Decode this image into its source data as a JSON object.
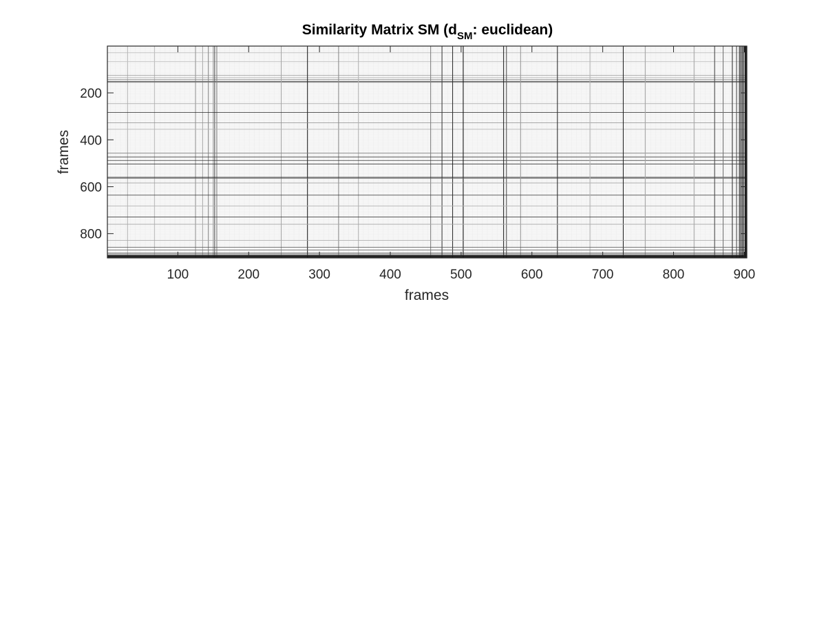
{
  "chart_data": {
    "type": "heatmap",
    "title": "Similarity Matrix SM   (d",
    "title_sub": "SM",
    "title_tail": ": euclidean)",
    "xlabel": "frames",
    "ylabel": "frames",
    "xlim": [
      0.5,
      903.5
    ],
    "ylim": [
      0.5,
      903.5
    ],
    "y_direction": "reverse",
    "xticks": [
      100,
      200,
      300,
      400,
      500,
      600,
      700,
      800,
      900
    ],
    "xtick_labels": [
      "100",
      "200",
      "300",
      "400",
      "500",
      "600",
      "700",
      "800",
      "900"
    ],
    "yticks": [
      200,
      400,
      600,
      800
    ],
    "ytick_labels": [
      "200",
      "400",
      "600",
      "800"
    ],
    "colormap": "gray",
    "background_value": 0.97,
    "dark_frames": [
      {
        "frame": 29,
        "value": 0.72
      },
      {
        "frame": 67,
        "value": 0.75
      },
      {
        "frame": 125,
        "value": 0.6
      },
      {
        "frame": 135,
        "value": 0.68
      },
      {
        "frame": 143,
        "value": 0.55
      },
      {
        "frame": 150,
        "value": 0.6
      },
      {
        "frame": 152,
        "value": 0.35
      },
      {
        "frame": 155,
        "value": 0.5
      },
      {
        "frame": 246,
        "value": 0.65
      },
      {
        "frame": 283,
        "value": 0.15
      },
      {
        "frame": 327,
        "value": 0.55
      },
      {
        "frame": 355,
        "value": 0.7
      },
      {
        "frame": 457,
        "value": 0.5
      },
      {
        "frame": 473,
        "value": 0.25
      },
      {
        "frame": 488,
        "value": 0.2
      },
      {
        "frame": 503,
        "value": 0.1
      },
      {
        "frame": 560,
        "value": 0.15
      },
      {
        "frame": 564,
        "value": 0.35
      },
      {
        "frame": 584,
        "value": 0.6
      },
      {
        "frame": 636,
        "value": 0.2
      },
      {
        "frame": 682,
        "value": 0.7
      },
      {
        "frame": 729,
        "value": 0.15
      },
      {
        "frame": 760,
        "value": 0.65
      },
      {
        "frame": 829,
        "value": 0.65
      },
      {
        "frame": 858,
        "value": 0.3
      },
      {
        "frame": 870,
        "value": 0.45
      },
      {
        "frame": 883,
        "value": 0.2
      },
      {
        "frame": 889,
        "value": 0.3
      },
      {
        "frame": 893,
        "value": 0.15
      },
      {
        "frame": 895,
        "value": 0.1
      },
      {
        "frame": 897,
        "value": 0.05
      },
      {
        "frame": 899,
        "value": 0.1
      },
      {
        "frame": 901,
        "value": 0.05
      },
      {
        "frame": 902,
        "value": 0.15
      },
      {
        "frame": 903,
        "value": 0.1
      }
    ],
    "grid": false,
    "colorbar": false
  }
}
